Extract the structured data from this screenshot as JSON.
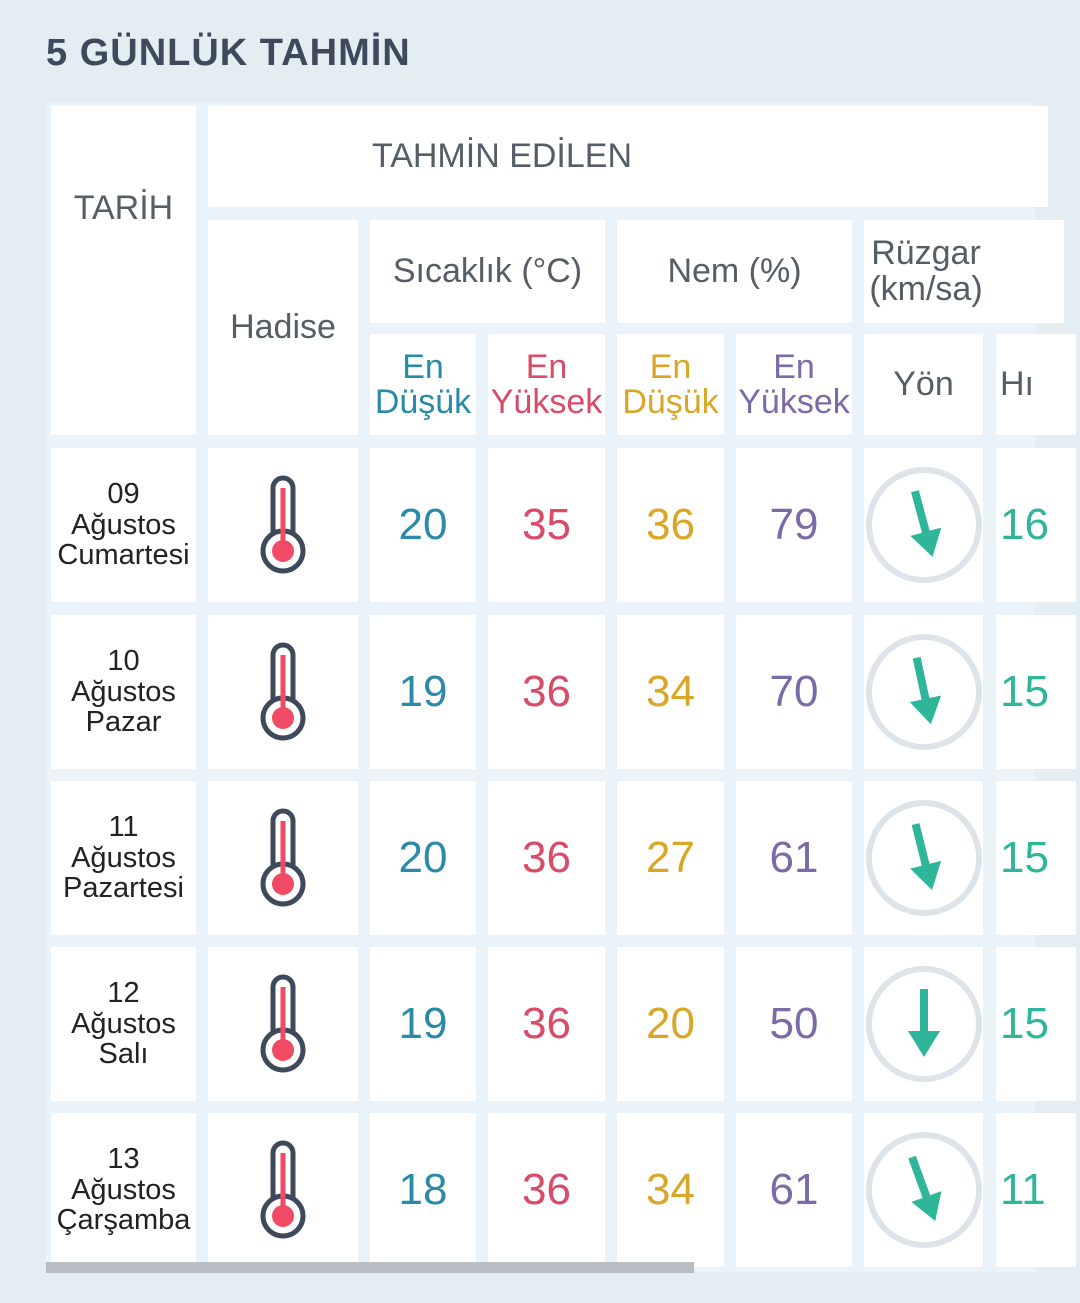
{
  "page": {
    "title": "5 GÜNLÜK TAHMİN"
  },
  "table": {
    "header": {
      "date_label": "TARİH",
      "forecast_label": "TAHMİN EDİLEN",
      "hadise_label": "Hadise",
      "temp_label": "Sıcaklık (°C)",
      "humidity_label": "Nem (%)",
      "wind_label_line1": "Rüzgar",
      "wind_label_line2": "(km/sa)",
      "min_line1": "En",
      "min_line2": "Düşük",
      "max_line1": "En",
      "max_line2": "Yüksek",
      "hum_min_line1": "En",
      "hum_min_line2": "Düşük",
      "hum_max_line1": "En",
      "hum_max_line2": "Yüksek",
      "direction_label": "Yön",
      "speed_label_partial": "Hı"
    },
    "rows": [
      {
        "day": "09",
        "month": "Ağustos",
        "weekday": "Cumartesi",
        "hadise_icon": "thermometer-icon",
        "temp_min": "20",
        "temp_max": "35",
        "hum_min": "36",
        "hum_max": "79",
        "wind_dir_icon": "wind-arrow-south-icon",
        "wind_speed_partial": "16"
      },
      {
        "day": "10",
        "month": "Ağustos",
        "weekday": "Pazar",
        "hadise_icon": "thermometer-icon",
        "temp_min": "19",
        "temp_max": "36",
        "hum_min": "34",
        "hum_max": "70",
        "wind_dir_icon": "wind-arrow-south-icon",
        "wind_speed_partial": "15"
      },
      {
        "day": "11",
        "month": "Ağustos",
        "weekday": "Pazartesi",
        "hadise_icon": "thermometer-icon",
        "temp_min": "20",
        "temp_max": "36",
        "hum_min": "27",
        "hum_max": "61",
        "wind_dir_icon": "wind-arrow-south-icon",
        "wind_speed_partial": "15"
      },
      {
        "day": "12",
        "month": "Ağustos",
        "weekday": "Salı",
        "hadise_icon": "thermometer-icon",
        "temp_min": "19",
        "temp_max": "36",
        "hum_min": "20",
        "hum_max": "50",
        "wind_dir_icon": "wind-arrow-south-icon",
        "wind_speed_partial": "15"
      },
      {
        "day": "13",
        "month": "Ağustos",
        "weekday": "Çarşamba",
        "hadise_icon": "thermometer-icon",
        "temp_min": "18",
        "temp_max": "36",
        "hum_min": "34",
        "hum_max": "61",
        "wind_dir_icon": "wind-arrow-south-icon",
        "wind_speed_partial": "11"
      }
    ]
  },
  "colors": {
    "background": "#e4edf2",
    "title": "#3e4a5c",
    "temp_min": "#2a8aa8",
    "temp_max": "#d94b67",
    "hum_min": "#d9a626",
    "hum_max": "#7c6aa8",
    "wind": "#2fb59a",
    "thermometer_outline": "#3e4a5c",
    "thermometer_fill": "#f04a64"
  }
}
